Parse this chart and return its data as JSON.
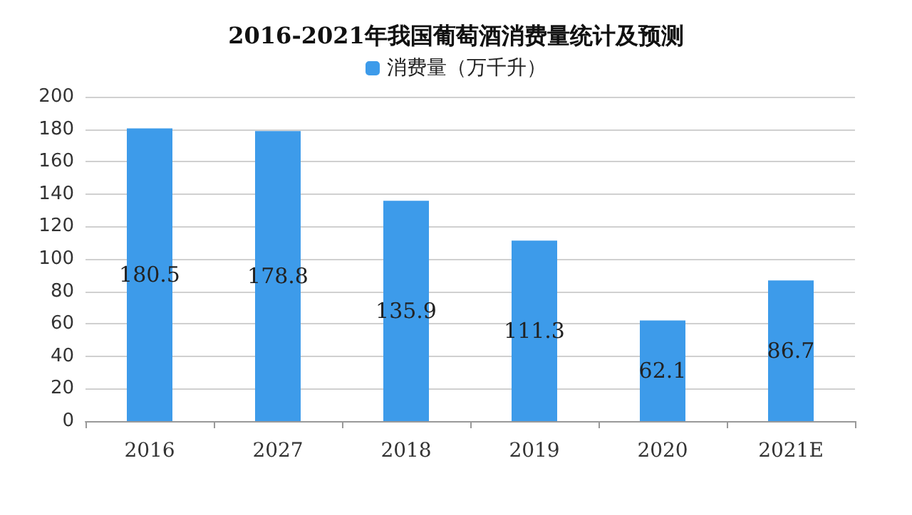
{
  "chart_data": {
    "type": "bar",
    "title": "2016-2021年我国葡萄酒消费量统计及预测",
    "categories": [
      "2016",
      "2027",
      "2018",
      "2019",
      "2020",
      "2021E"
    ],
    "series": [
      {
        "name": "消费量（万千升）",
        "color": "#3d9bea",
        "values": [
          180.5,
          178.8,
          135.9,
          111.3,
          62.1,
          86.7
        ]
      }
    ],
    "ylim": [
      0,
      200
    ],
    "yticks": [
      0,
      20,
      40,
      60,
      80,
      100,
      120,
      140,
      160,
      180,
      200
    ],
    "grid": "y",
    "legend": "top",
    "data_labels": true
  }
}
